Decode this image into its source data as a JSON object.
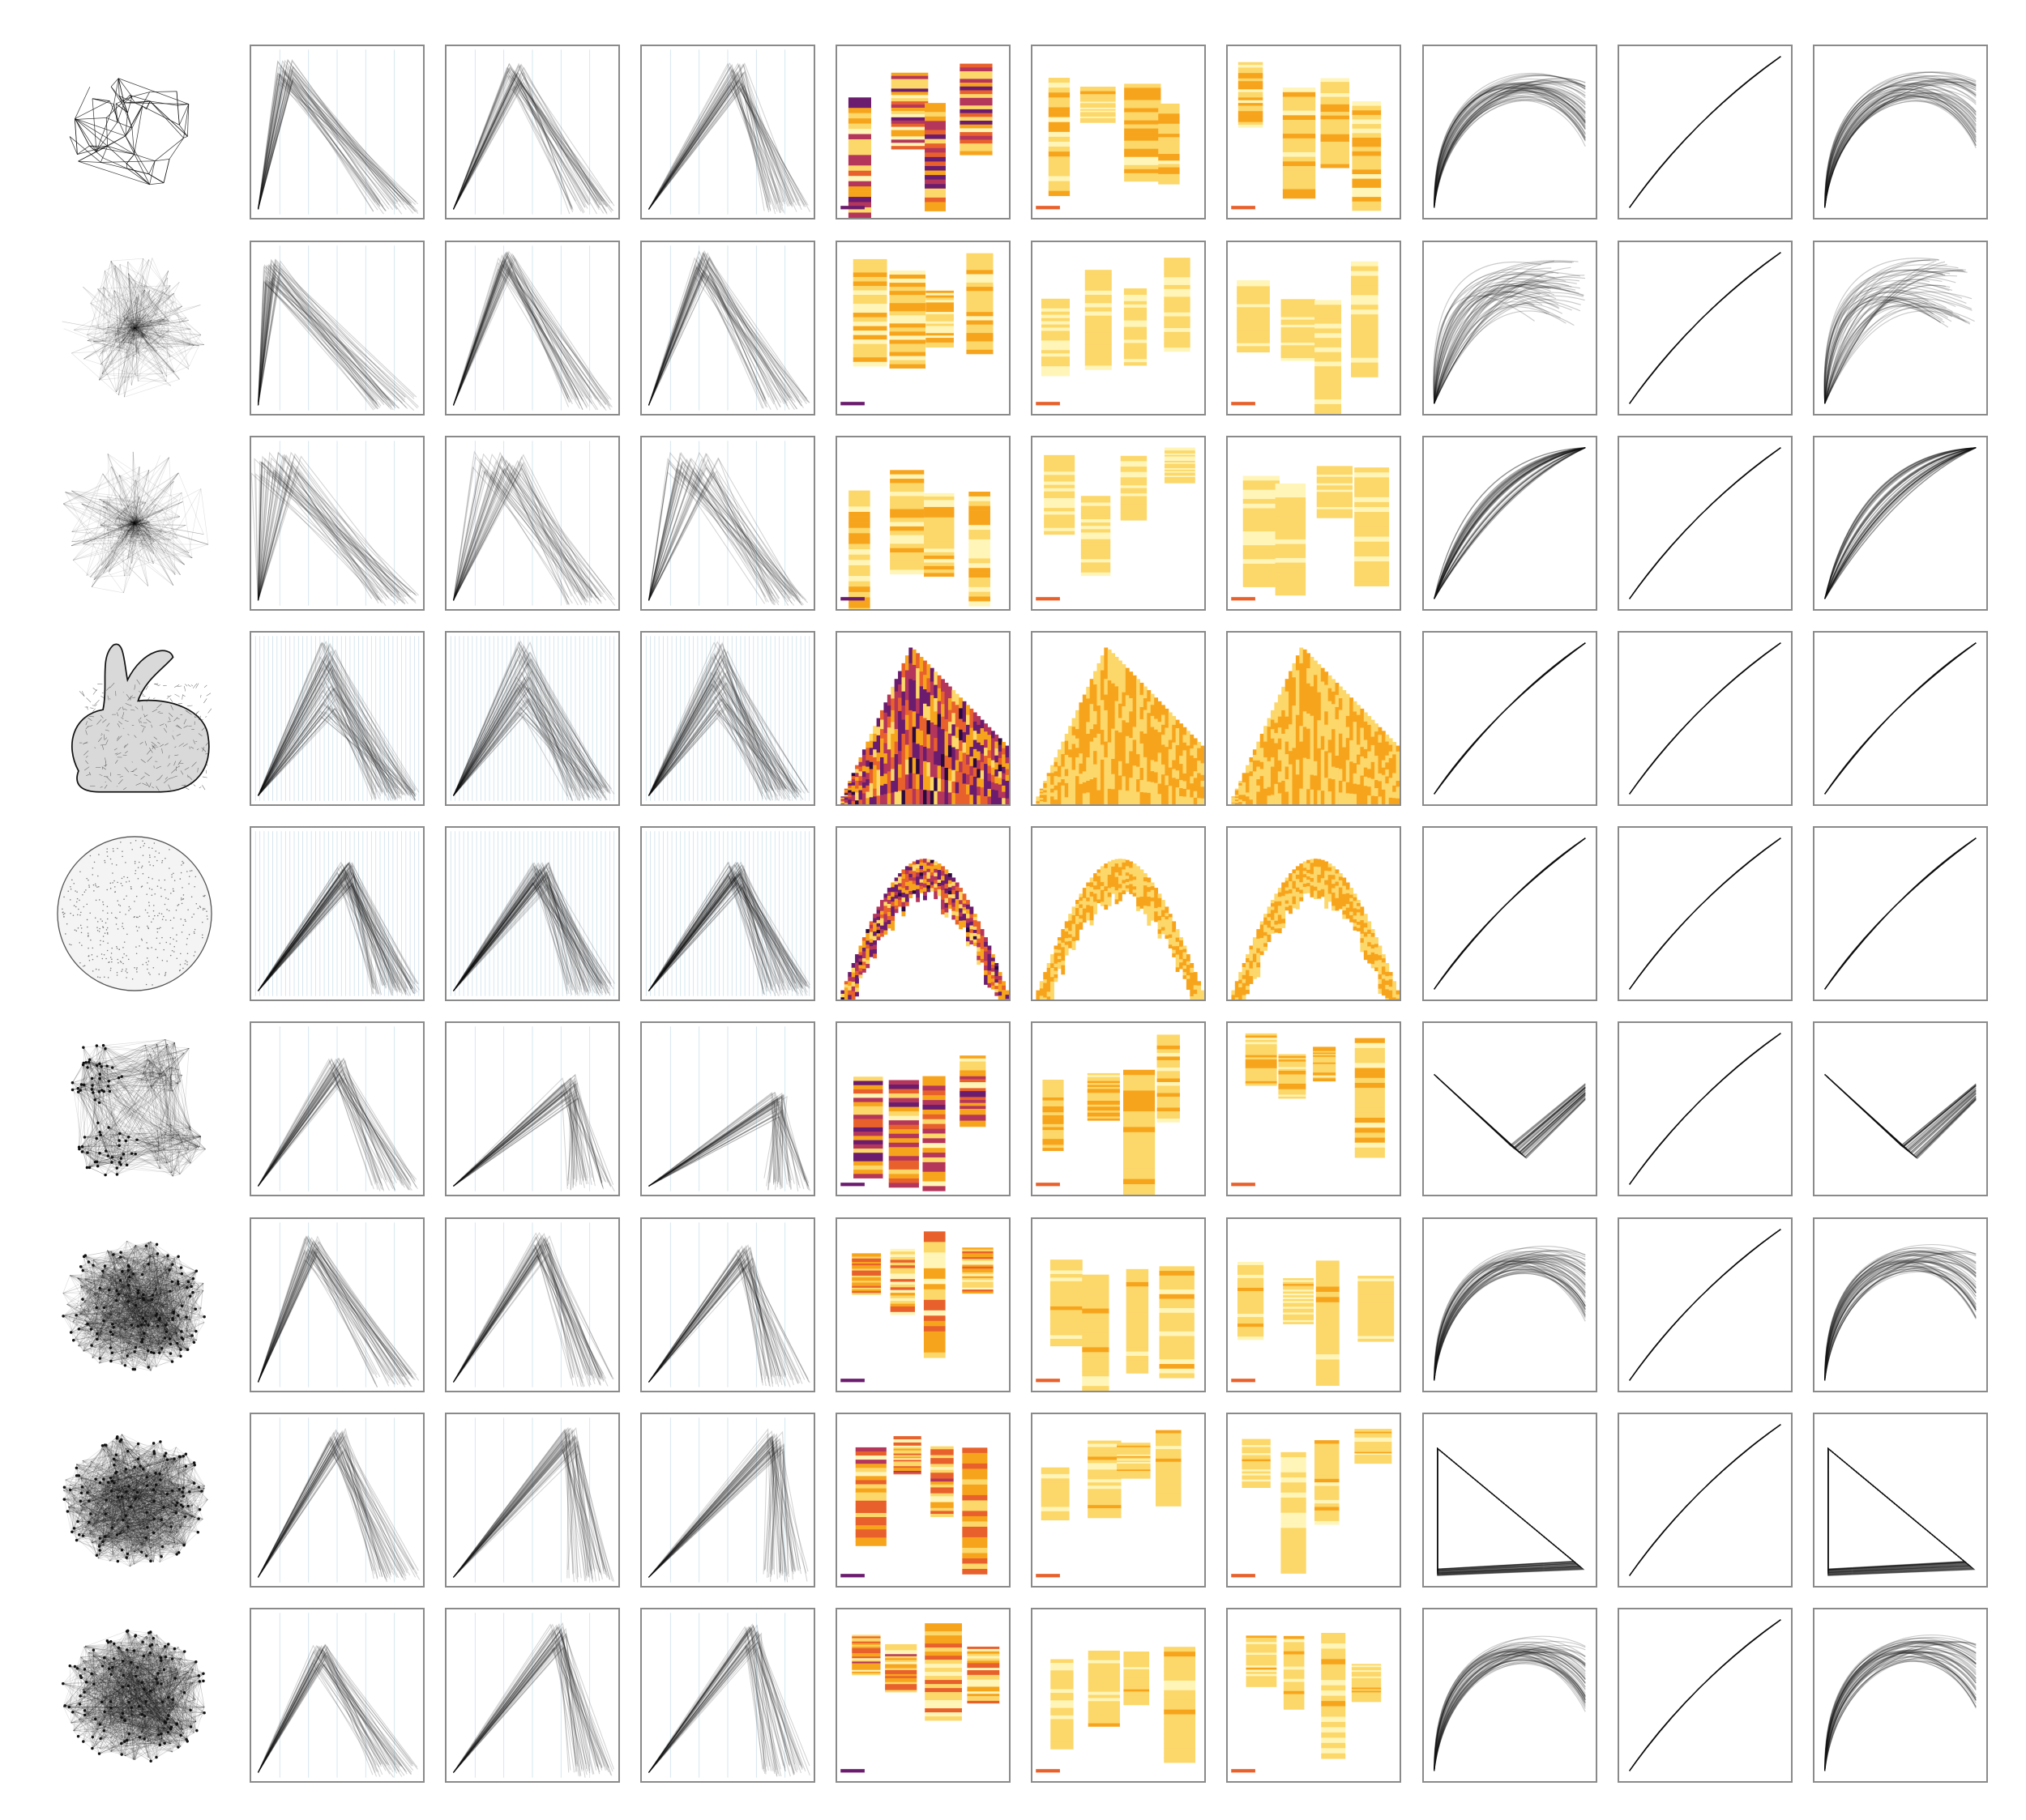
{
  "figure": {
    "row_count": 9,
    "column_count": 10,
    "rows": [
      {
        "id": "r1",
        "graph": "sparse-mesh",
        "series_count": 3,
        "peaks": [
          [
            0.2,
            0.92
          ],
          [
            0.4,
            0.9
          ],
          [
            0.55,
            0.9
          ]
        ],
        "heat": "strong",
        "curve": "loop-wide"
      },
      {
        "id": "r2",
        "graph": "dense-hub",
        "series_count": 3,
        "peaks": [
          [
            0.12,
            0.9
          ],
          [
            0.35,
            0.95
          ],
          [
            0.35,
            0.95
          ]
        ],
        "heat": "light",
        "curve": "fan"
      },
      {
        "id": "r3",
        "graph": "star-burst",
        "series_count": 4,
        "peaks": [
          [
            0.15,
            0.92
          ],
          [
            0.3,
            0.92
          ],
          [
            0.3,
            0.92
          ]
        ],
        "heat": "light",
        "curve": "lens"
      },
      {
        "id": "r4",
        "graph": "bunny-mesh",
        "series_count": 5,
        "peaks": [
          [
            0.45,
            0.95
          ],
          [
            0.45,
            0.95
          ],
          [
            0.45,
            0.95
          ]
        ],
        "heat": "fill",
        "curve": "thin-lens"
      },
      {
        "id": "r5",
        "graph": "disc-mesh",
        "series_count": 5,
        "peaks": [
          [
            0.55,
            0.8
          ],
          [
            0.55,
            0.8
          ],
          [
            0.55,
            0.8
          ]
        ],
        "heat": "arc",
        "curve": "thin-lens"
      },
      {
        "id": "r6",
        "graph": "clustered",
        "series_count": 3,
        "peaks": [
          [
            0.5,
            0.8
          ],
          [
            0.72,
            0.7
          ],
          [
            0.8,
            0.6
          ]
        ],
        "heat": "strong",
        "curve": "cross"
      },
      {
        "id": "r7",
        "graph": "dense-blob",
        "series_count": 3,
        "peaks": [
          [
            0.35,
            0.9
          ],
          [
            0.55,
            0.92
          ],
          [
            0.6,
            0.85
          ]
        ],
        "heat": "blocks",
        "curve": "loop-wide"
      },
      {
        "id": "r8",
        "graph": "rough-blob",
        "series_count": 2,
        "peaks": [
          [
            0.5,
            0.92
          ],
          [
            0.72,
            0.92
          ],
          [
            0.78,
            0.92
          ]
        ],
        "heat": "blocks",
        "curve": "triangle"
      },
      {
        "id": "r9",
        "graph": "hairy-blob",
        "series_count": 3,
        "peaks": [
          [
            0.4,
            0.8
          ],
          [
            0.65,
            0.92
          ],
          [
            0.65,
            0.92
          ]
        ],
        "heat": "blocks",
        "curve": "loop-wide"
      }
    ],
    "columns": [
      {
        "id": "c0",
        "kind": "graph-drawing"
      },
      {
        "id": "c1",
        "kind": "line-profile"
      },
      {
        "id": "c2",
        "kind": "line-profile"
      },
      {
        "id": "c3",
        "kind": "line-profile"
      },
      {
        "id": "c4",
        "kind": "heatmap-inferno"
      },
      {
        "id": "c5",
        "kind": "heatmap-pale"
      },
      {
        "id": "c6",
        "kind": "heatmap-pale"
      },
      {
        "id": "c7",
        "kind": "curve-bundle"
      },
      {
        "id": "c8",
        "kind": "diagonal-bundle"
      },
      {
        "id": "c9",
        "kind": "curve-bundle"
      }
    ],
    "colors": {
      "ink": "#111111",
      "grid_line": "#cfe3ee",
      "panel_border": "#8a8a8a",
      "inferno": [
        "#2b0a3d",
        "#6b1c6e",
        "#b5365b",
        "#e8612c",
        "#f7a41d",
        "#fcd76a",
        "#fff5b8"
      ]
    }
  }
}
